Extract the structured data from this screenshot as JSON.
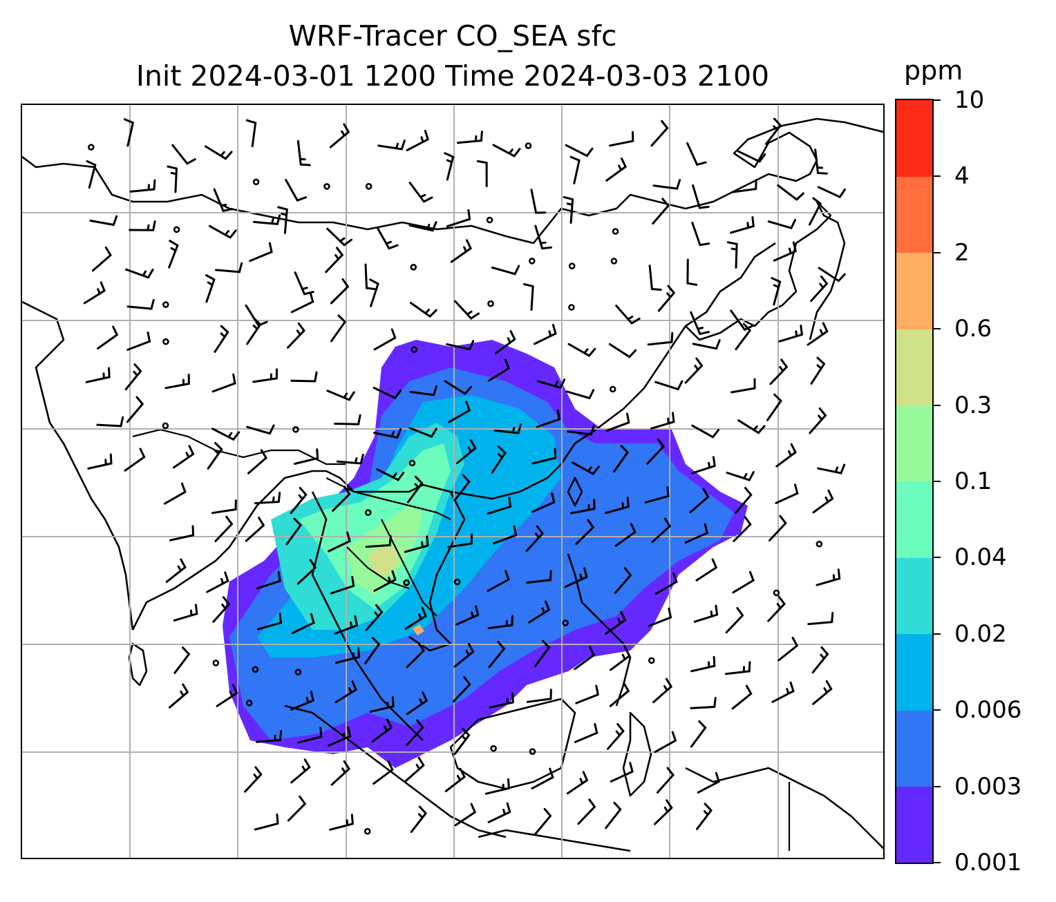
{
  "title": {
    "line1": "WRF-Tracer CO_SEA sfc",
    "line2": "Init 2024-03-01 1200 Time 2024-03-03 2100"
  },
  "colorbar": {
    "unit": "ppm",
    "levels": [
      "0.001",
      "0.003",
      "0.006",
      "0.02",
      "0.04",
      "0.1",
      "0.3",
      "0.6",
      "2",
      "4",
      "10"
    ],
    "colors": [
      "#6529ff",
      "#3176f4",
      "#00b3ec",
      "#2fdcd6",
      "#6cfcbd",
      "#98f99b",
      "#d0e189",
      "#fdae61",
      "#ff6e3d",
      "#fe2a18"
    ]
  },
  "map": {
    "layers": [
      "CO_SEA tracer concentration (filled contours)",
      "surface wind barbs",
      "coastlines and borders",
      "lat/lon gridlines"
    ],
    "grid": true
  }
}
